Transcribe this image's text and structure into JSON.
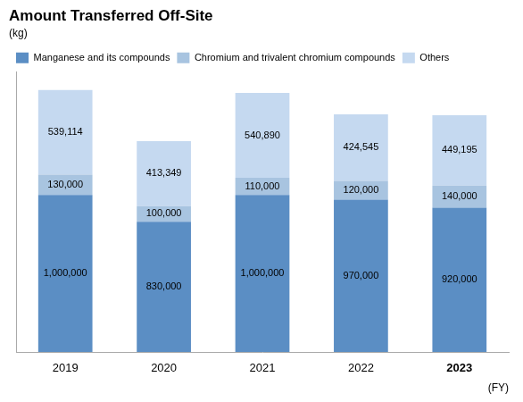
{
  "chart_data": {
    "type": "bar",
    "stacked": true,
    "title": "Amount Transferred Off-Site",
    "subtitle": "(kg)",
    "xlabel": "(FY)",
    "categories": [
      "2019",
      "2020",
      "2021",
      "2022",
      "2023"
    ],
    "series": [
      {
        "name": "Manganese and its compounds",
        "color": "#5b8ec4",
        "values": [
          1000000,
          830000,
          1000000,
          970000,
          920000
        ],
        "value_labels": [
          "1,000,000",
          "830,000",
          "1,000,000",
          "970,000",
          "920,000"
        ]
      },
      {
        "name": "Chromium and trivalent chromium compounds",
        "color": "#a8c4e0",
        "values": [
          130000,
          100000,
          110000,
          120000,
          140000
        ],
        "value_labels": [
          "130,000",
          "100,000",
          "110,000",
          "120,000",
          "140,000"
        ]
      },
      {
        "name": "Others",
        "color": "#c5d9f0",
        "values": [
          539114,
          413349,
          540890,
          424545,
          449195
        ],
        "value_labels": [
          "539,114",
          "413,349",
          "540,890",
          "424,545",
          "449,195"
        ]
      }
    ],
    "ylim": [
      0,
      1782961.2
    ],
    "yticks": [],
    "tick_labels": "x",
    "grid": false,
    "legend": "upper left",
    "data_labels": true
  }
}
